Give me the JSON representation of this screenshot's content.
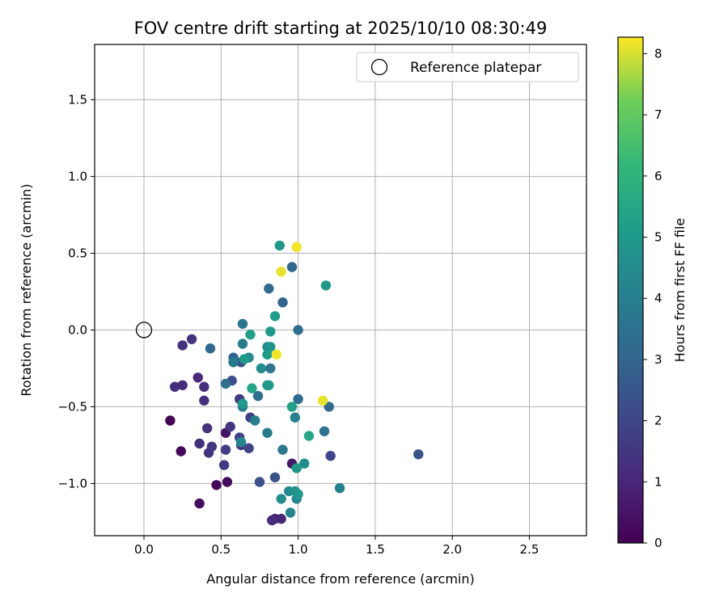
{
  "chart_data": {
    "type": "scatter",
    "title": "FOV centre drift starting at 2025/10/10 08:30:49",
    "xlabel": "Angular distance from reference (arcmin)",
    "ylabel": "Rotation from reference (arcmin)",
    "xlim": [
      -0.32,
      2.87
    ],
    "ylim": [
      -1.34,
      1.86
    ],
    "xticks": [
      0.0,
      0.5,
      1.0,
      1.5,
      2.0,
      2.5
    ],
    "xtick_labels": [
      "0.0",
      "0.5",
      "1.0",
      "1.5",
      "2.0",
      "2.5"
    ],
    "yticks": [
      -1.0,
      -0.5,
      0.0,
      0.5,
      1.0,
      1.5
    ],
    "ytick_labels": [
      "−1.0",
      "−0.5",
      "0.0",
      "0.5",
      "1.0",
      "1.5"
    ],
    "grid": true,
    "legend": {
      "label": "Reference platepar",
      "location": "top-right"
    },
    "reference_point": {
      "x": 0.0,
      "y": 0.0
    },
    "colorbar": {
      "label": "Hours from first FF file",
      "colormap": "viridis",
      "range": [
        0,
        8.27
      ],
      "ticks": [
        0,
        1,
        2,
        3,
        4,
        5,
        6,
        7,
        8
      ],
      "tick_labels": [
        "0",
        "1",
        "2",
        "3",
        "4",
        "5",
        "6",
        "7",
        "8"
      ]
    },
    "points": [
      {
        "x": 0.17,
        "y": -0.59,
        "h": 0.1
      },
      {
        "x": 0.24,
        "y": -0.79,
        "h": 0.2
      },
      {
        "x": 0.36,
        "y": -1.13,
        "h": 0.3
      },
      {
        "x": 0.47,
        "y": -1.01,
        "h": 0.2
      },
      {
        "x": 0.54,
        "y": -0.99,
        "h": 0.3
      },
      {
        "x": 0.53,
        "y": -0.67,
        "h": 0.5
      },
      {
        "x": 0.96,
        "y": -0.87,
        "h": 0.6
      },
      {
        "x": 0.85,
        "y": -1.23,
        "h": 0.8
      },
      {
        "x": 0.89,
        "y": -1.23,
        "h": 1.0
      },
      {
        "x": 0.83,
        "y": -1.24,
        "h": 1.2
      },
      {
        "x": 0.25,
        "y": -0.1,
        "h": 1.3
      },
      {
        "x": 0.31,
        "y": -0.06,
        "h": 1.4
      },
      {
        "x": 0.2,
        "y": -0.37,
        "h": 1.3
      },
      {
        "x": 0.25,
        "y": -0.36,
        "h": 1.2
      },
      {
        "x": 0.35,
        "y": -0.31,
        "h": 1.1
      },
      {
        "x": 0.39,
        "y": -0.37,
        "h": 1.2
      },
      {
        "x": 0.39,
        "y": -0.46,
        "h": 1.3
      },
      {
        "x": 0.41,
        "y": -0.64,
        "h": 1.4
      },
      {
        "x": 0.36,
        "y": -0.74,
        "h": 1.3
      },
      {
        "x": 0.42,
        "y": -0.8,
        "h": 1.4
      },
      {
        "x": 0.44,
        "y": -0.76,
        "h": 1.5
      },
      {
        "x": 0.52,
        "y": -0.88,
        "h": 1.6
      },
      {
        "x": 0.53,
        "y": -0.78,
        "h": 1.7
      },
      {
        "x": 0.56,
        "y": -0.63,
        "h": 1.5
      },
      {
        "x": 0.62,
        "y": -0.45,
        "h": 1.6
      },
      {
        "x": 0.62,
        "y": -0.7,
        "h": 1.8
      },
      {
        "x": 0.63,
        "y": -0.75,
        "h": 1.6
      },
      {
        "x": 0.68,
        "y": -0.77,
        "h": 1.9
      },
      {
        "x": 0.69,
        "y": -0.57,
        "h": 1.8
      },
      {
        "x": 0.57,
        "y": -0.33,
        "h": 2.2
      },
      {
        "x": 0.63,
        "y": -0.21,
        "h": 2.3
      },
      {
        "x": 0.75,
        "y": -0.99,
        "h": 2.3
      },
      {
        "x": 0.85,
        "y": -0.96,
        "h": 2.4
      },
      {
        "x": 1.21,
        "y": -0.82,
        "h": 2.0
      },
      {
        "x": 1.78,
        "y": -0.81,
        "h": 2.4
      },
      {
        "x": 0.43,
        "y": -0.12,
        "h": 3.1
      },
      {
        "x": 0.53,
        "y": -0.35,
        "h": 3.4
      },
      {
        "x": 0.58,
        "y": -0.18,
        "h": 3.0
      },
      {
        "x": 0.64,
        "y": 0.04,
        "h": 3.6
      },
      {
        "x": 0.74,
        "y": -0.43,
        "h": 3.3
      },
      {
        "x": 0.81,
        "y": 0.27,
        "h": 3.2
      },
      {
        "x": 0.9,
        "y": 0.18,
        "h": 3.0
      },
      {
        "x": 0.96,
        "y": 0.41,
        "h": 3.1
      },
      {
        "x": 1.0,
        "y": 0.0,
        "h": 3.3
      },
      {
        "x": 1.0,
        "y": -0.45,
        "h": 3.2
      },
      {
        "x": 1.2,
        "y": -0.5,
        "h": 3.1
      },
      {
        "x": 1.17,
        "y": -0.66,
        "h": 3.5
      },
      {
        "x": 0.58,
        "y": -0.21,
        "h": 3.8
      },
      {
        "x": 0.64,
        "y": -0.09,
        "h": 3.9
      },
      {
        "x": 0.64,
        "y": -0.5,
        "h": 3.9
      },
      {
        "x": 0.72,
        "y": -0.59,
        "h": 4.0
      },
      {
        "x": 0.8,
        "y": -0.67,
        "h": 3.8
      },
      {
        "x": 0.82,
        "y": -0.25,
        "h": 3.6
      },
      {
        "x": 0.9,
        "y": -0.78,
        "h": 3.7
      },
      {
        "x": 0.98,
        "y": -0.57,
        "h": 4.0
      },
      {
        "x": 1.27,
        "y": -1.03,
        "h": 4.1
      },
      {
        "x": 0.63,
        "y": -0.73,
        "h": 4.3
      },
      {
        "x": 0.68,
        "y": -0.18,
        "h": 4.3
      },
      {
        "x": 0.76,
        "y": -0.25,
        "h": 4.5
      },
      {
        "x": 0.8,
        "y": -0.11,
        "h": 4.4
      },
      {
        "x": 0.8,
        "y": -0.36,
        "h": 4.6
      },
      {
        "x": 0.82,
        "y": -0.11,
        "h": 4.8
      },
      {
        "x": 0.89,
        "y": -1.1,
        "h": 4.5
      },
      {
        "x": 0.94,
        "y": -1.05,
        "h": 4.4
      },
      {
        "x": 0.95,
        "y": -1.19,
        "h": 4.2
      },
      {
        "x": 0.98,
        "y": -1.05,
        "h": 4.6
      },
      {
        "x": 0.99,
        "y": -1.1,
        "h": 4.3
      },
      {
        "x": 1.04,
        "y": -0.87,
        "h": 4.5
      },
      {
        "x": 1.18,
        "y": 0.29,
        "h": 4.9
      },
      {
        "x": 0.64,
        "y": -0.48,
        "h": 5.0
      },
      {
        "x": 0.65,
        "y": -0.19,
        "h": 5.1
      },
      {
        "x": 0.69,
        "y": -0.03,
        "h": 5.2
      },
      {
        "x": 0.8,
        "y": -0.16,
        "h": 5.1
      },
      {
        "x": 0.81,
        "y": -0.36,
        "h": 4.9
      },
      {
        "x": 0.82,
        "y": -0.01,
        "h": 5.0
      },
      {
        "x": 0.85,
        "y": 0.09,
        "h": 5.1
      },
      {
        "x": 0.88,
        "y": 0.55,
        "h": 5.0
      },
      {
        "x": 0.96,
        "y": -0.5,
        "h": 5.2
      },
      {
        "x": 0.99,
        "y": -0.9,
        "h": 4.9
      },
      {
        "x": 1.0,
        "y": -1.07,
        "h": 5.0
      },
      {
        "x": 0.7,
        "y": -0.38,
        "h": 5.4
      },
      {
        "x": 1.07,
        "y": -0.69,
        "h": 5.5
      },
      {
        "x": 0.86,
        "y": -0.16,
        "h": 8.2
      },
      {
        "x": 0.89,
        "y": 0.38,
        "h": 8.1
      },
      {
        "x": 0.99,
        "y": 0.54,
        "h": 8.2
      },
      {
        "x": 1.16,
        "y": -0.46,
        "h": 8.1
      }
    ]
  }
}
